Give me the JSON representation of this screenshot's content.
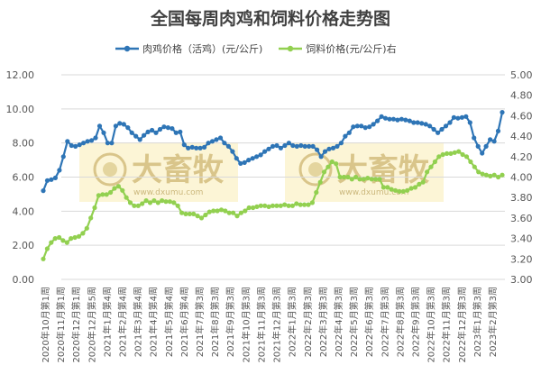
{
  "chart_data": {
    "type": "line",
    "title": "全国每周肉鸡和饲料价格走势图",
    "x_labels": [
      "2020年10月第1周",
      "2020年11月第1周",
      "2020年12月第1周",
      "2020年12月第5周",
      "2021年1月第4周",
      "2021年2月第4周",
      "2021年3月第4周",
      "2021年4月第4周",
      "2021年5月第4周",
      "2021年6月第4周",
      "2021年7月第3周",
      "2021年8月第3周",
      "2021年9月第3周",
      "2021年10月第3周",
      "2021年11月第3周",
      "2021年12月第3周",
      "2022年1月第3周",
      "2022年2月第3周",
      "2022年3月第3周",
      "2022年4月第3周",
      "2022年5月第3周",
      "2022年6月第3周",
      "2022年7月第3周",
      "2022年8月第3周",
      "2022年9月第3周",
      "2022年10月第3周",
      "2022年11月第3周",
      "2022年12月第3周",
      "2023年1月第3周",
      "2023年2月第3周"
    ],
    "left_axis": {
      "min": 0,
      "max": 12,
      "step": 2,
      "tick_labels": [
        "0.00",
        "2.00",
        "4.00",
        "6.00",
        "8.00",
        "10.00",
        "12.00"
      ]
    },
    "right_axis": {
      "min": 3.0,
      "max": 5.0,
      "step": 0.2,
      "tick_labels": [
        "3.00",
        "3.20",
        "3.40",
        "3.60",
        "3.80",
        "4.00",
        "4.20",
        "4.40",
        "4.60",
        "4.80",
        "5.00"
      ]
    },
    "grid": "horizontal",
    "legend_position": "top",
    "series": [
      {
        "name": "肉鸡价格（活鸡）(元/公斤)",
        "axis": "left",
        "color": "#2e75b6",
        "values": [
          5.2,
          5.8,
          5.85,
          5.95,
          6.4,
          7.2,
          8.1,
          7.85,
          7.8,
          7.9,
          8.0,
          8.1,
          8.15,
          8.3,
          9.0,
          8.6,
          8.0,
          8.0,
          9.0,
          9.15,
          9.1,
          8.9,
          8.6,
          8.4,
          8.2,
          8.45,
          8.65,
          8.75,
          8.6,
          8.8,
          8.95,
          8.9,
          8.85,
          8.6,
          8.65,
          7.9,
          7.7,
          7.75,
          7.7,
          7.7,
          7.75,
          8.0,
          8.1,
          8.2,
          8.3,
          8.0,
          7.8,
          7.5,
          7.1,
          6.8,
          6.85,
          7.0,
          7.1,
          7.2,
          7.3,
          7.5,
          7.65,
          7.8,
          7.85,
          7.7,
          7.85,
          8.0,
          7.85,
          7.8,
          7.85,
          7.8,
          7.8,
          7.8,
          7.6,
          7.2,
          7.5,
          7.65,
          7.7,
          7.8,
          8.0,
          8.4,
          8.6,
          8.95,
          9.0,
          9.0,
          8.9,
          8.95,
          9.1,
          9.3,
          9.55,
          9.45,
          9.4,
          9.4,
          9.35,
          9.4,
          9.35,
          9.3,
          9.2,
          9.2,
          9.15,
          9.1,
          9.0,
          8.8,
          8.6,
          8.8,
          9.0,
          9.2,
          9.5,
          9.45,
          9.5,
          9.55,
          9.2,
          8.3,
          7.8,
          7.4,
          7.8,
          8.2,
          8.1,
          8.7,
          9.8
        ]
      },
      {
        "name": "饲料价格(元/公斤)右",
        "axis": "right",
        "color": "#92d050",
        "values": [
          3.2,
          3.3,
          3.36,
          3.4,
          3.41,
          3.38,
          3.36,
          3.4,
          3.41,
          3.42,
          3.45,
          3.5,
          3.6,
          3.7,
          3.82,
          3.83,
          3.83,
          3.85,
          3.89,
          3.91,
          3.87,
          3.8,
          3.75,
          3.72,
          3.72,
          3.74,
          3.77,
          3.75,
          3.77,
          3.75,
          3.77,
          3.76,
          3.76,
          3.75,
          3.72,
          3.65,
          3.64,
          3.64,
          3.64,
          3.62,
          3.6,
          3.63,
          3.66,
          3.67,
          3.67,
          3.68,
          3.67,
          3.65,
          3.65,
          3.62,
          3.65,
          3.67,
          3.7,
          3.7,
          3.71,
          3.72,
          3.72,
          3.71,
          3.72,
          3.72,
          3.72,
          3.73,
          3.72,
          3.72,
          3.74,
          3.73,
          3.73,
          3.73,
          3.75,
          3.85,
          3.95,
          4.05,
          4.1,
          4.15,
          4.13,
          4.0,
          4.0,
          4.0,
          3.98,
          4.0,
          3.98,
          3.98,
          3.99,
          3.98,
          3.98,
          3.98,
          3.9,
          3.9,
          3.88,
          3.87,
          3.86,
          3.86,
          3.87,
          3.89,
          3.9,
          3.93,
          3.95,
          4.05,
          4.1,
          4.15,
          4.2,
          4.22,
          4.23,
          4.23,
          4.24,
          4.25,
          4.22,
          4.2,
          4.15,
          4.1,
          4.05,
          4.03,
          4.02,
          4.01,
          4.02,
          4.0,
          4.02
        ]
      }
    ]
  },
  "watermark": {
    "text": "大畜牧",
    "sub": "www.dxumu.com"
  }
}
